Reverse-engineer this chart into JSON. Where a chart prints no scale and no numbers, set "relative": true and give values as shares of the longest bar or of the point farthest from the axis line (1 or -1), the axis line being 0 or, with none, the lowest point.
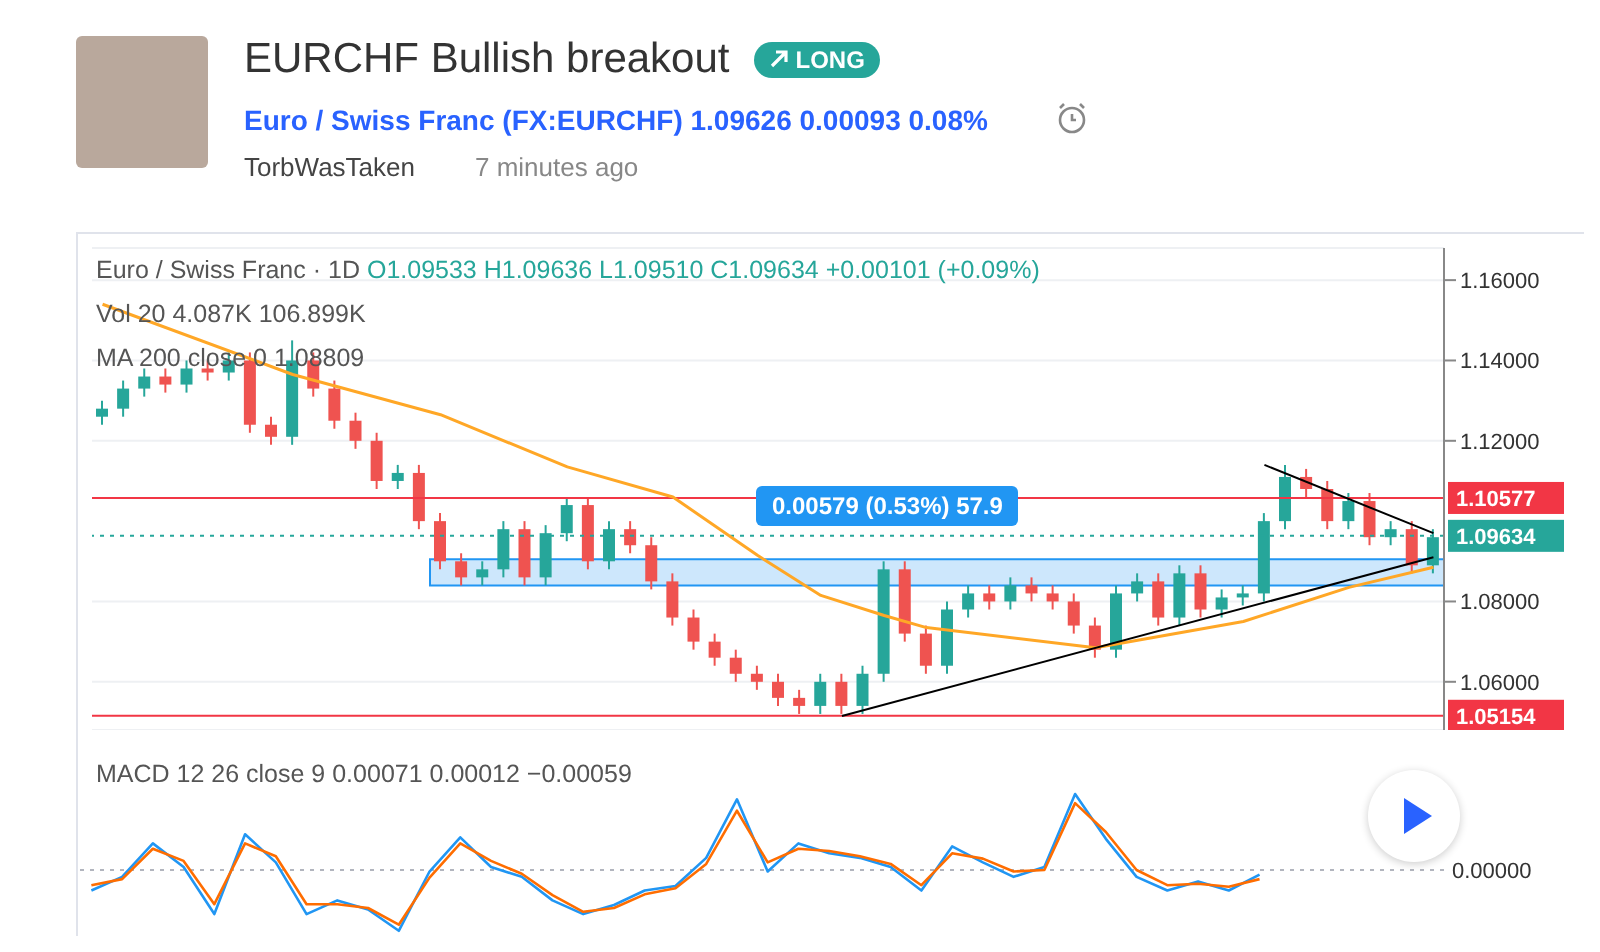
{
  "chart_data": [
    {
      "type": "candlestick",
      "title": "EURCHF Bullish breakout",
      "subtitle": "Euro / Swiss Franc (FX:EURCHF) 1.09626 0.00093 0.08%",
      "annotations": [
        "LONG",
        "TorbWasTaken",
        "7 minutes ago",
        "Euro / Swiss Franc · 1D",
        "O1.09533 H1.09636 L1.09510 C1.09634 +0.00101 (+0.09%)",
        "Vol 20 4.087K 106.899K",
        "MA 200 close 0 1.08809",
        "0.00579 (0.53%) 57.9"
      ],
      "categories": [
        null,
        null,
        null,
        null,
        null,
        null,
        null,
        null,
        null,
        null,
        null,
        null,
        null,
        null,
        null,
        null,
        null,
        null,
        null,
        null,
        null,
        null,
        null,
        null,
        null,
        null,
        null,
        null,
        null,
        null,
        null,
        null,
        null,
        null,
        null,
        null,
        null,
        null,
        null,
        null,
        null,
        null,
        null,
        null,
        null,
        null,
        null,
        null,
        null,
        null,
        null,
        null,
        null,
        null,
        null,
        null,
        null,
        null,
        null,
        null,
        null,
        null,
        null,
        null
      ],
      "ohlc": [
        [
          1.126,
          1.13,
          1.124,
          1.128
        ],
        [
          1.128,
          1.135,
          1.126,
          1.133
        ],
        [
          1.133,
          1.138,
          1.131,
          1.136
        ],
        [
          1.136,
          1.138,
          1.132,
          1.134
        ],
        [
          1.134,
          1.14,
          1.132,
          1.138
        ],
        [
          1.138,
          1.14,
          1.135,
          1.137
        ],
        [
          1.137,
          1.142,
          1.135,
          1.14
        ],
        [
          1.14,
          1.142,
          1.122,
          1.124
        ],
        [
          1.124,
          1.126,
          1.119,
          1.121
        ],
        [
          1.121,
          1.145,
          1.119,
          1.14
        ],
        [
          1.14,
          1.142,
          1.131,
          1.133
        ],
        [
          1.133,
          1.135,
          1.123,
          1.125
        ],
        [
          1.125,
          1.127,
          1.118,
          1.12
        ],
        [
          1.12,
          1.122,
          1.108,
          1.11
        ],
        [
          1.11,
          1.114,
          1.108,
          1.112
        ],
        [
          1.112,
          1.114,
          1.098,
          1.1
        ],
        [
          1.1,
          1.102,
          1.088,
          1.09
        ],
        [
          1.09,
          1.092,
          1.084,
          1.086
        ],
        [
          1.086,
          1.09,
          1.084,
          1.088
        ],
        [
          1.088,
          1.1,
          1.086,
          1.098
        ],
        [
          1.098,
          1.1,
          1.084,
          1.086
        ],
        [
          1.086,
          1.099,
          1.084,
          1.097
        ],
        [
          1.097,
          1.106,
          1.095,
          1.104
        ],
        [
          1.104,
          1.106,
          1.088,
          1.09
        ],
        [
          1.09,
          1.1,
          1.088,
          1.098
        ],
        [
          1.098,
          1.1,
          1.092,
          1.094
        ],
        [
          1.094,
          1.096,
          1.083,
          1.085
        ],
        [
          1.085,
          1.087,
          1.074,
          1.076
        ],
        [
          1.076,
          1.078,
          1.068,
          1.07
        ],
        [
          1.07,
          1.072,
          1.064,
          1.066
        ],
        [
          1.066,
          1.068,
          1.06,
          1.062
        ],
        [
          1.062,
          1.064,
          1.058,
          1.06
        ],
        [
          1.06,
          1.062,
          1.054,
          1.056
        ],
        [
          1.056,
          1.058,
          1.052,
          1.054
        ],
        [
          1.054,
          1.062,
          1.052,
          1.06
        ],
        [
          1.06,
          1.062,
          1.052,
          1.054
        ],
        [
          1.054,
          1.064,
          1.052,
          1.062
        ],
        [
          1.062,
          1.09,
          1.06,
          1.088
        ],
        [
          1.088,
          1.09,
          1.07,
          1.072
        ],
        [
          1.072,
          1.074,
          1.062,
          1.064
        ],
        [
          1.064,
          1.08,
          1.062,
          1.078
        ],
        [
          1.078,
          1.084,
          1.076,
          1.082
        ],
        [
          1.082,
          1.084,
          1.078,
          1.08
        ],
        [
          1.08,
          1.086,
          1.078,
          1.084
        ],
        [
          1.084,
          1.086,
          1.08,
          1.082
        ],
        [
          1.082,
          1.084,
          1.078,
          1.08
        ],
        [
          1.08,
          1.082,
          1.072,
          1.074
        ],
        [
          1.074,
          1.076,
          1.066,
          1.068
        ],
        [
          1.068,
          1.084,
          1.066,
          1.082
        ],
        [
          1.082,
          1.087,
          1.08,
          1.085
        ],
        [
          1.085,
          1.087,
          1.074,
          1.076
        ],
        [
          1.076,
          1.089,
          1.074,
          1.087
        ],
        [
          1.087,
          1.089,
          1.076,
          1.078
        ],
        [
          1.078,
          1.083,
          1.076,
          1.081
        ],
        [
          1.081,
          1.084,
          1.079,
          1.082
        ],
        [
          1.082,
          1.102,
          1.08,
          1.1
        ],
        [
          1.1,
          1.114,
          1.098,
          1.111
        ],
        [
          1.111,
          1.113,
          1.106,
          1.108
        ],
        [
          1.108,
          1.11,
          1.098,
          1.1
        ],
        [
          1.1,
          1.107,
          1.098,
          1.105
        ],
        [
          1.105,
          1.107,
          1.094,
          1.096
        ],
        [
          1.096,
          1.1,
          1.094,
          1.098
        ],
        [
          1.098,
          1.1,
          1.087,
          1.089
        ],
        [
          1.089,
          1.098,
          1.087,
          1.096
        ]
      ],
      "colors": [
        "#26a69a",
        "#26a69a",
        "#26a69a",
        "#ef5350",
        "#26a69a",
        "#ef5350",
        "#26a69a",
        "#ef5350",
        "#ef5350",
        "#26a69a",
        "#ef5350",
        "#ef5350",
        "#ef5350",
        "#ef5350",
        "#26a69a",
        "#ef5350",
        "#ef5350",
        "#ef5350",
        "#26a69a",
        "#26a69a",
        "#ef5350",
        "#26a69a",
        "#26a69a",
        "#ef5350",
        "#26a69a",
        "#ef5350",
        "#ef5350",
        "#ef5350",
        "#ef5350",
        "#ef5350",
        "#ef5350",
        "#ef5350",
        "#ef5350",
        "#ef5350",
        "#26a69a",
        "#ef5350",
        "#26a69a",
        "#26a69a",
        "#ef5350",
        "#ef5350",
        "#26a69a",
        "#26a69a",
        "#ef5350",
        "#26a69a",
        "#ef5350",
        "#ef5350",
        "#ef5350",
        "#ef5350",
        "#26a69a",
        "#26a69a",
        "#ef5350",
        "#26a69a",
        "#ef5350",
        "#26a69a",
        "#26a69a",
        "#26a69a",
        "#26a69a",
        "#ef5350",
        "#ef5350",
        "#26a69a",
        "#ef5350",
        "#26a69a",
        "#ef5350",
        "#26a69a"
      ],
      "series": [
        {
          "type": "line",
          "color": "#ffa726",
          "values": [
            1.154,
            null,
            null,
            null,
            null,
            null,
            null,
            null,
            null,
            1.1365,
            null,
            null,
            null,
            null,
            null,
            null,
            1.1265,
            null,
            null,
            null,
            null,
            null,
            1.1135,
            null,
            null,
            null,
            null,
            1.106,
            null,
            null,
            null,
            1.0915,
            null,
            null,
            1.0815,
            null,
            null,
            1.0765,
            null,
            1.0735,
            null,
            null,
            null,
            null,
            null,
            null,
            null,
            1.0685,
            null,
            null,
            null,
            null,
            null,
            null,
            1.075,
            null,
            null,
            null,
            null,
            1.0835,
            null,
            null,
            null,
            1.0885
          ]
        },
        {
          "type": "line",
          "color": "#000000",
          "values": [
            null,
            null,
            null,
            null,
            null,
            null,
            null,
            null,
            null,
            null,
            null,
            null,
            null,
            null,
            null,
            null,
            null,
            null,
            null,
            null,
            null,
            null,
            null,
            null,
            null,
            null,
            null,
            null,
            null,
            null,
            null,
            null,
            null,
            null,
            null,
            1.0515,
            null,
            null,
            null,
            null,
            null,
            null,
            null,
            null,
            null,
            null,
            null,
            null,
            null,
            null,
            null,
            null,
            null,
            null,
            null,
            null,
            null,
            null,
            null,
            null,
            null,
            null,
            null,
            1.091
          ]
        },
        {
          "type": "line",
          "color": "#000000",
          "values": [
            null,
            null,
            null,
            null,
            null,
            null,
            null,
            null,
            null,
            null,
            null,
            null,
            null,
            null,
            null,
            null,
            null,
            null,
            null,
            null,
            null,
            null,
            null,
            null,
            null,
            null,
            null,
            null,
            null,
            null,
            null,
            null,
            null,
            null,
            null,
            null,
            null,
            null,
            null,
            null,
            null,
            null,
            null,
            null,
            null,
            null,
            null,
            null,
            null,
            null,
            null,
            null,
            null,
            null,
            null,
            1.114,
            null,
            null,
            null,
            null,
            null,
            null,
            null,
            1.097
          ]
        }
      ],
      "ylim": [
        1.048,
        1.168
      ],
      "yticks": [
        {
          "value": 1.06,
          "label": "1.06000"
        },
        {
          "value": 1.08,
          "label": "1.08000"
        },
        {
          "value": 1.12,
          "label": "1.12000"
        },
        {
          "value": 1.14,
          "label": "1.14000"
        },
        {
          "value": 1.16,
          "label": "1.16000"
        }
      ],
      "ref_lines": [
        {
          "axis": "y",
          "value": 1.10577,
          "label": "1.10577",
          "color": "#f23645",
          "line_style": "solid"
        },
        {
          "axis": "y",
          "value": 1.05154,
          "label": "1.05154",
          "color": "#f23645",
          "line_style": "solid"
        },
        {
          "axis": "y",
          "value": 1.09634,
          "label": "1.09634",
          "color": "#26a69a",
          "line_style": "dotted"
        }
      ],
      "bands": [
        {
          "axis": "y",
          "from": 1.084,
          "to": 1.0905,
          "color": "#90caf9"
        }
      ],
      "grid": "y",
      "legend": false,
      "tick_labels": "y"
    },
    {
      "type": "line",
      "title": "MACD 12 26 close 9 0.00071 0.00012 −0.00059",
      "relative": true,
      "categories": [
        null,
        null,
        null,
        null,
        null,
        null,
        null,
        null,
        null,
        null,
        null,
        null,
        null,
        null,
        null,
        null,
        null,
        null,
        null,
        null,
        null,
        null,
        null,
        null,
        null,
        null,
        null,
        null,
        null,
        null,
        null,
        null,
        null,
        null,
        null,
        null,
        null,
        null,
        null
      ],
      "series": [
        {
          "color": "#2196f3",
          "values": [
            -0.27,
            -0.09,
            0.35,
            0.04,
            -0.58,
            0.47,
            0.1,
            -0.58,
            -0.4,
            -0.52,
            -0.8,
            -0.02,
            0.43,
            0.04,
            -0.09,
            -0.4,
            -0.58,
            -0.46,
            -0.27,
            -0.21,
            0.16,
            0.93,
            -0.02,
            0.35,
            0.22,
            0.16,
            0.04,
            -0.27,
            0.31,
            0.1,
            -0.09,
            0.04,
            1,
            0.41,
            -0.09,
            -0.27,
            -0.15,
            -0.27,
            -0.06
          ]
        },
        {
          "color": "#ff6d00",
          "values": [
            -0.2,
            -0.12,
            0.28,
            0.12,
            -0.45,
            0.35,
            0.18,
            -0.45,
            -0.45,
            -0.5,
            -0.72,
            -0.1,
            0.35,
            0.12,
            -0.05,
            -0.33,
            -0.55,
            -0.5,
            -0.32,
            -0.24,
            0.08,
            0.78,
            0.1,
            0.28,
            0.25,
            0.18,
            0.08,
            -0.2,
            0.22,
            0.15,
            -0.02,
            0.0,
            0.88,
            0.5,
            0.0,
            -0.2,
            -0.18,
            -0.22,
            -0.12
          ]
        }
      ],
      "ref_lines": [
        {
          "axis": "y",
          "value": 0,
          "label": "0.00000",
          "color": "#b2b5be",
          "line_style": "dotted"
        }
      ],
      "legend": false,
      "marker": "none",
      "line_style": "solid"
    }
  ]
}
